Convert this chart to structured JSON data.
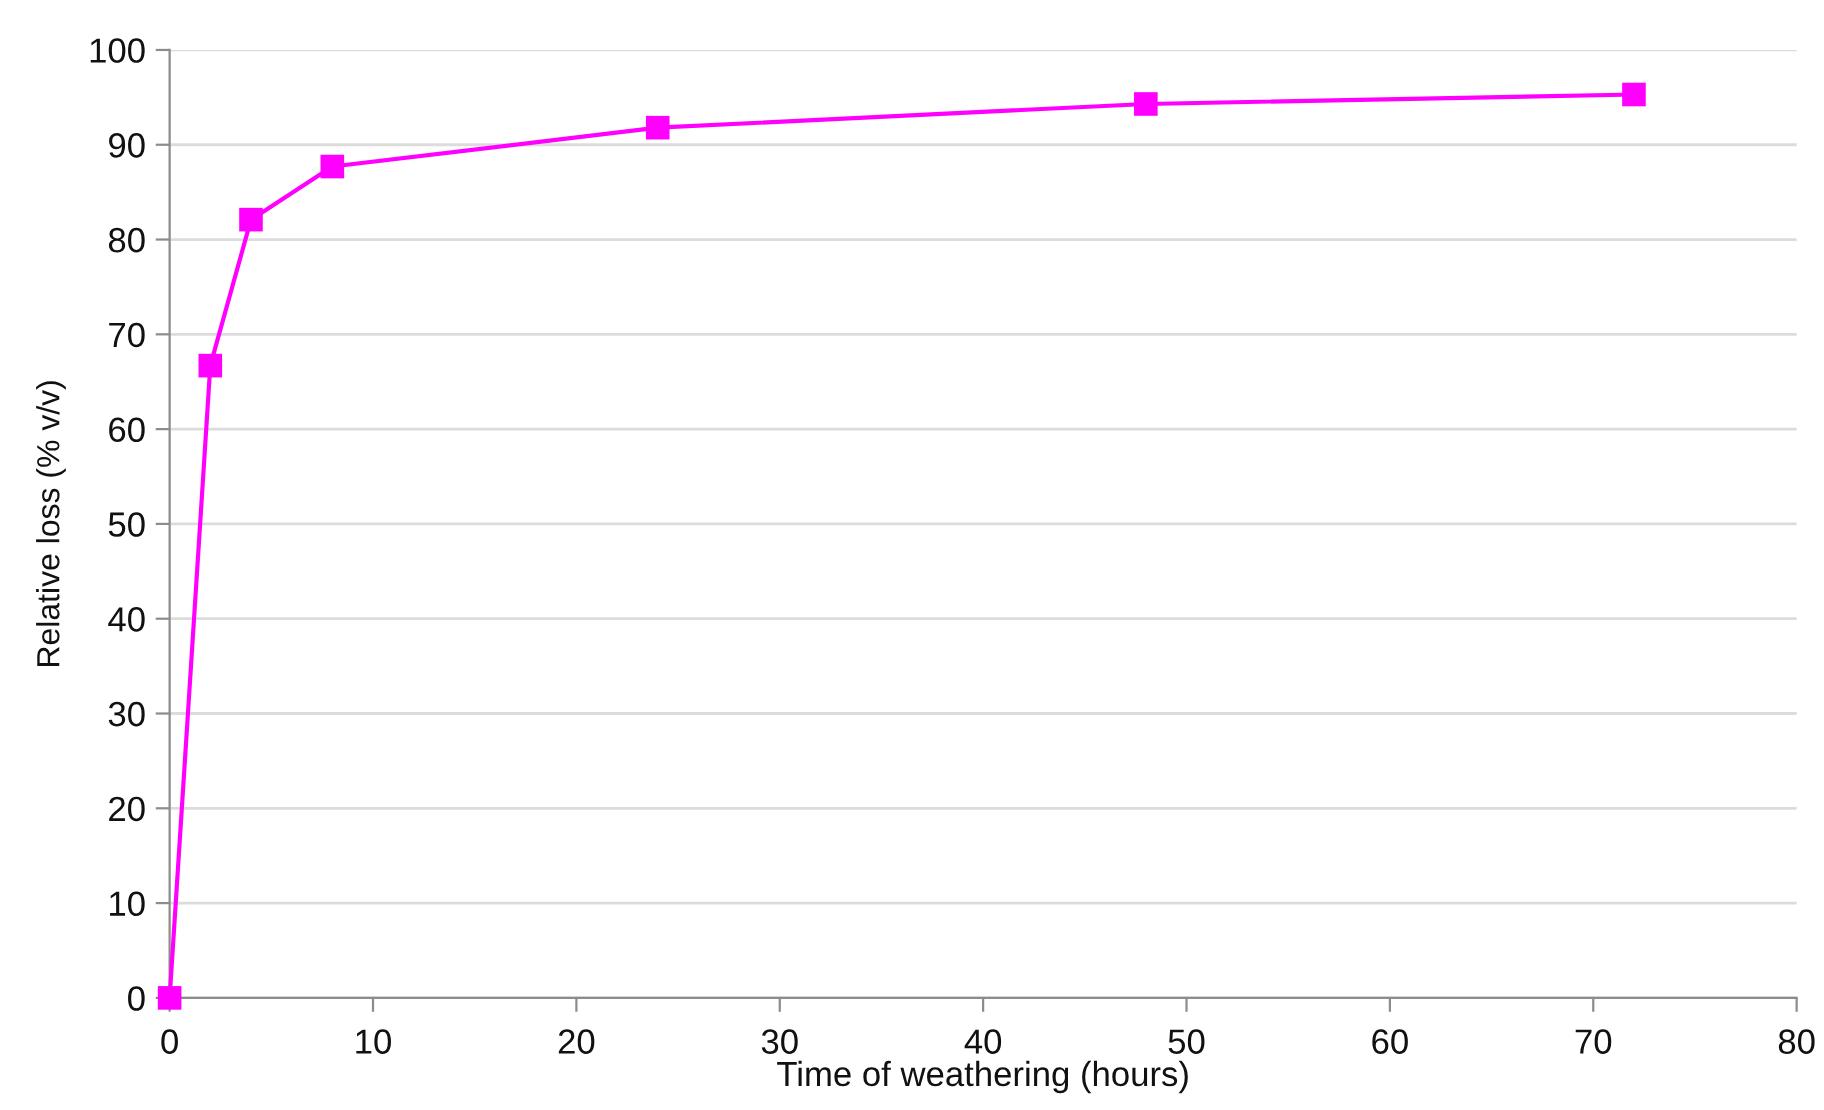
{
  "chart_data": {
    "type": "line",
    "xlabel": "Time of weathering (hours)",
    "ylabel": "Relative loss (% v/v)",
    "x": [
      0,
      2,
      4,
      8,
      24,
      48,
      72
    ],
    "series": [
      {
        "color": "#ff00ff",
        "values": [
          0,
          66.7,
          82.1,
          87.7,
          91.8,
          94.3,
          95.3
        ]
      }
    ],
    "xlim": [
      0,
      80
    ],
    "xticks": [
      0,
      10,
      20,
      30,
      40,
      50,
      60,
      70,
      80
    ],
    "ylim": [
      0,
      100
    ],
    "yticks": [
      0,
      10,
      20,
      30,
      40,
      50,
      60,
      70,
      80,
      90,
      100
    ],
    "grid": "y",
    "marker": "square",
    "line_style": "solid"
  }
}
